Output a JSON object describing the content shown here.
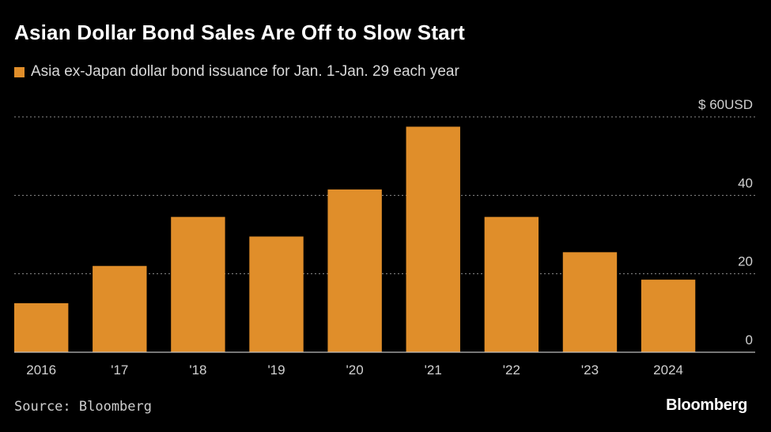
{
  "header": {
    "title": "Asian Dollar Bond Sales Are Off to Slow Start"
  },
  "legend": {
    "label": "Asia ex-Japan dollar bond issuance for Jan. 1-Jan. 29 each year"
  },
  "footer": {
    "source": "Source: Bloomberg",
    "brand": "Bloomberg"
  },
  "colors": {
    "bar": "#e08e2a",
    "grid": "#8c8c8c",
    "tick_text": "#d0d0d0",
    "background": "#000000"
  },
  "chart_data": {
    "type": "bar",
    "title": "Asian Dollar Bond Sales Are Off to Slow Start",
    "categories": [
      "2016",
      "'17",
      "'18",
      "'19",
      "'20",
      "'21",
      "'22",
      "'23",
      "2024"
    ],
    "series": [
      {
        "name": "Asia ex-Japan dollar bond issuance for Jan. 1-Jan. 29 each year",
        "values": [
          12.5,
          22,
          34.5,
          29.5,
          41.5,
          57.5,
          34.5,
          25.5,
          18.5
        ]
      }
    ],
    "ylim": [
      0,
      60
    ],
    "yticks": [
      {
        "value": 60,
        "label": "$ 60USD"
      },
      {
        "value": 40,
        "label": "40"
      },
      {
        "value": 20,
        "label": "20"
      },
      {
        "value": 0,
        "label": "0"
      }
    ],
    "y_axis_position": "right",
    "grid": true,
    "legend_position": "top-left"
  }
}
